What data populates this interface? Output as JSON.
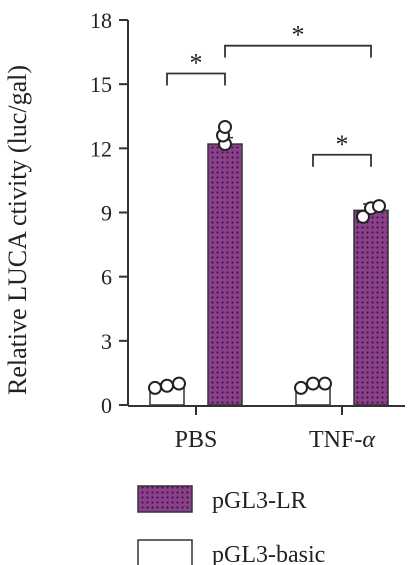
{
  "chart_data": {
    "type": "bar",
    "ylabel": "Relative LUCA ctivity (luc/gal)",
    "ylim": [
      0,
      18
    ],
    "yticks": [
      0,
      3,
      6,
      9,
      12,
      15,
      18
    ],
    "categories": [
      "PBS",
      "TNF-α"
    ],
    "series": [
      {
        "name": "pGL3-basic",
        "values": [
          0.9,
          0.9
        ],
        "error": [
          0.1,
          0.1
        ],
        "points": [
          [
            0.8,
            0.9,
            1.0
          ],
          [
            0.8,
            1.0,
            1.0
          ]
        ],
        "fill": "#ffffff"
      },
      {
        "name": "pGL3-LR",
        "values": [
          12.2,
          9.1
        ],
        "error": [
          0.3,
          0.3
        ],
        "points": [
          [
            12.2,
            12.6,
            13.0
          ],
          [
            8.8,
            9.2,
            9.3
          ]
        ],
        "fill": "#8b3f8c"
      }
    ],
    "significance": [
      {
        "label": "*",
        "from": "PBS:pGL3-basic",
        "to": "PBS:pGL3-LR",
        "y": 15.5
      },
      {
        "label": "*",
        "from": "PBS:pGL3-LR",
        "to": "TNF-α:pGL3-LR",
        "y": 16.8
      },
      {
        "label": "*",
        "from": "TNF-α:pGL3-basic",
        "to": "TNF-α:pGL3-LR",
        "y": 11.7
      }
    ],
    "legend": [
      {
        "label": "pGL3-LR",
        "fill": "#8b3f8c"
      },
      {
        "label": "pGL3-basic",
        "fill": "#ffffff"
      }
    ],
    "legend_position": "bottom"
  }
}
